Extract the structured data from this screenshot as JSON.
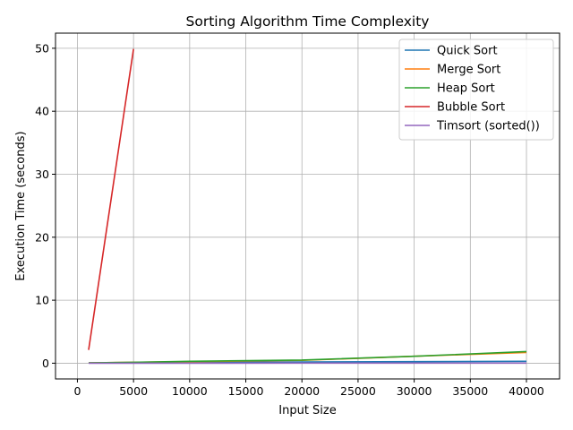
{
  "chart_data": {
    "type": "line",
    "title": "Sorting Algorithm Time Complexity",
    "xlabel": "Input Size",
    "ylabel": "Execution Time (seconds)",
    "xlim": [
      -1950,
      42950
    ],
    "ylim": [
      -2.5,
      52.4
    ],
    "xticks": [
      0,
      5000,
      10000,
      15000,
      20000,
      25000,
      30000,
      35000,
      40000
    ],
    "yticks": [
      0,
      10,
      20,
      30,
      40,
      50
    ],
    "grid": true,
    "legend_position": "top-right",
    "series": [
      {
        "name": "Quick Sort",
        "color": "#1f77b4",
        "x": [
          1000,
          5000,
          10000,
          20000,
          30000,
          40000
        ],
        "y": [
          0.05,
          0.1,
          0.15,
          0.2,
          0.25,
          0.3
        ]
      },
      {
        "name": "Merge Sort",
        "color": "#ff7f0e",
        "x": [
          1000,
          5000,
          10000,
          20000,
          30000,
          40000
        ],
        "y": [
          0.05,
          0.15,
          0.25,
          0.45,
          1.1,
          1.7
        ]
      },
      {
        "name": "Heap Sort",
        "color": "#2ca02c",
        "x": [
          1000,
          5000,
          10000,
          20000,
          30000,
          40000
        ],
        "y": [
          0.05,
          0.15,
          0.3,
          0.5,
          1.1,
          1.85
        ]
      },
      {
        "name": "Bubble Sort",
        "color": "#d62728",
        "x": [
          1000,
          5000
        ],
        "y": [
          2.1,
          49.9
        ]
      },
      {
        "name": "Timsort (sorted())",
        "color": "#9467bd",
        "x": [
          1000,
          5000,
          10000,
          20000,
          30000,
          40000
        ],
        "y": [
          0.0,
          0.0,
          0.0,
          0.01,
          0.01,
          0.01
        ]
      }
    ]
  }
}
